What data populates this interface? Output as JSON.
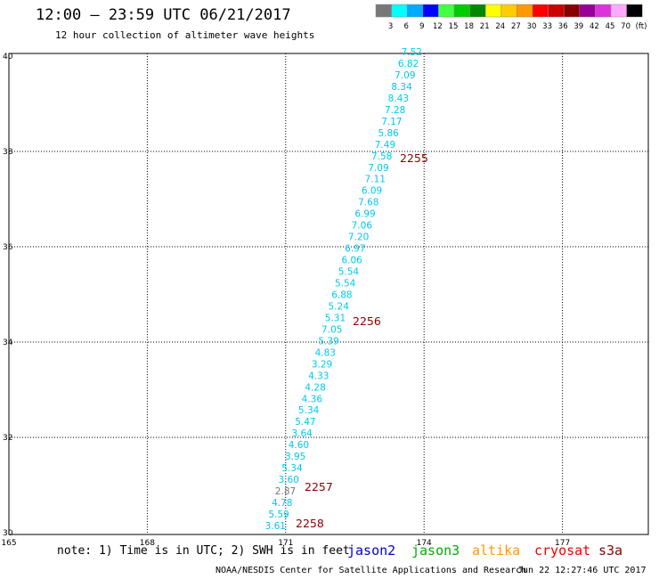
{
  "header": {
    "title": "12:00 – 23:59 UTC 06/21/2017",
    "subtitle": "12 hour collection of altimeter wave heights"
  },
  "color_scale": {
    "colors": [
      "#777777",
      "#00ffff",
      "#00aaff",
      "#0000ff",
      "#44ff44",
      "#00cc00",
      "#008800",
      "#ffff00",
      "#ffcc00",
      "#ff9900",
      "#ff0000",
      "#cc0000",
      "#880000",
      "#990099",
      "#dd33dd",
      "#ffaaff",
      "#000000"
    ],
    "labels": [
      "3",
      "6",
      "9",
      "12",
      "15",
      "18",
      "21",
      "24",
      "27",
      "30",
      "33",
      "36",
      "39",
      "42",
      "45",
      "70",
      "(ft)"
    ]
  },
  "axes": {
    "lat_labels": [
      "40",
      "38",
      "36",
      "34",
      "32",
      "30"
    ],
    "lon_labels": [
      "165",
      "168",
      "171",
      "174",
      "177"
    ]
  },
  "swh_values": [
    "7.52",
    "6.82",
    "7.09",
    "8.34",
    "8.43",
    "7.28",
    "7.17",
    "5.86",
    "7.49",
    "7.58",
    "7.09",
    "7.11",
    "6.09",
    "7.68",
    "6.99",
    "7.06",
    "7.20",
    "6.97",
    "6.06",
    "5.54",
    "5.54",
    "6.88",
    "5.24",
    "5.31",
    "7.05",
    "5.39",
    "4.83",
    "3.29",
    "4.33",
    "4.28",
    "4.36",
    "5.34",
    "5.47",
    "3.64",
    "4.60",
    "3.95",
    "5.34",
    "3.60",
    "2.87",
    "4.78",
    "5.59",
    "3.61"
  ],
  "time_stamps": [
    "2255",
    "2256",
    "2257",
    "2258"
  ],
  "note": "note: 1) Time is in UTC; 2) SWH is in feet",
  "satellites": [
    {
      "name": "jason2",
      "color": "#0000cc"
    },
    {
      "name": "jason3",
      "color": "#00aa00"
    },
    {
      "name": "altika",
      "color": "#ff9900"
    },
    {
      "name": "cryosat",
      "color": "#ee0000"
    },
    {
      "name": "s3a",
      "color": "#880000"
    }
  ],
  "footer": {
    "credit": "NOAA/NESDIS Center for Satellite Applications and Research",
    "generated": "Jun 22 12:27:46 UTC 2017"
  }
}
